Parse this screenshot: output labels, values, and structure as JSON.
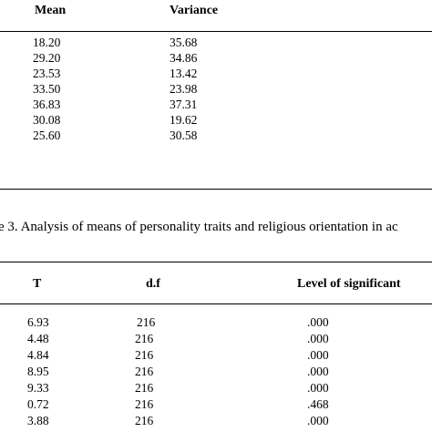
{
  "table_top": {
    "headers": {
      "mean": "Mean",
      "variance": "Variance"
    },
    "rows": [
      {
        "mean": "18.20",
        "variance": "35.68"
      },
      {
        "mean": "29.20",
        "variance": "34.86"
      },
      {
        "mean": "23.53",
        "variance": "13.42"
      },
      {
        "mean": "33.50",
        "variance": "23.98"
      },
      {
        "mean": "36.83",
        "variance": "37.31"
      },
      {
        "mean": "30.08",
        "variance": "19.62"
      },
      {
        "mean": "25.60",
        "variance": "30.58"
      }
    ]
  },
  "caption": "e 3. Analysis of means of personality traits and religious orientation in ac",
  "table_bottom": {
    "headers": {
      "t": "T",
      "df": "d.f",
      "level": "Level of significant"
    },
    "rows": [
      {
        "t": "6.93",
        "df": "216",
        "level": ".000"
      },
      {
        "t": "4.48",
        "df": "216",
        "level": ".000"
      },
      {
        "t": "4.84",
        "df": "216",
        "level": ".000"
      },
      {
        "t": "8.95",
        "df": "216",
        "level": ".000"
      },
      {
        "t": "9.33",
        "df": "216",
        "level": ".000"
      },
      {
        "t": "0.72",
        "df": "216",
        "level": ".468"
      },
      {
        "t": "3.88",
        "df": "216",
        "level": ".000"
      }
    ]
  }
}
